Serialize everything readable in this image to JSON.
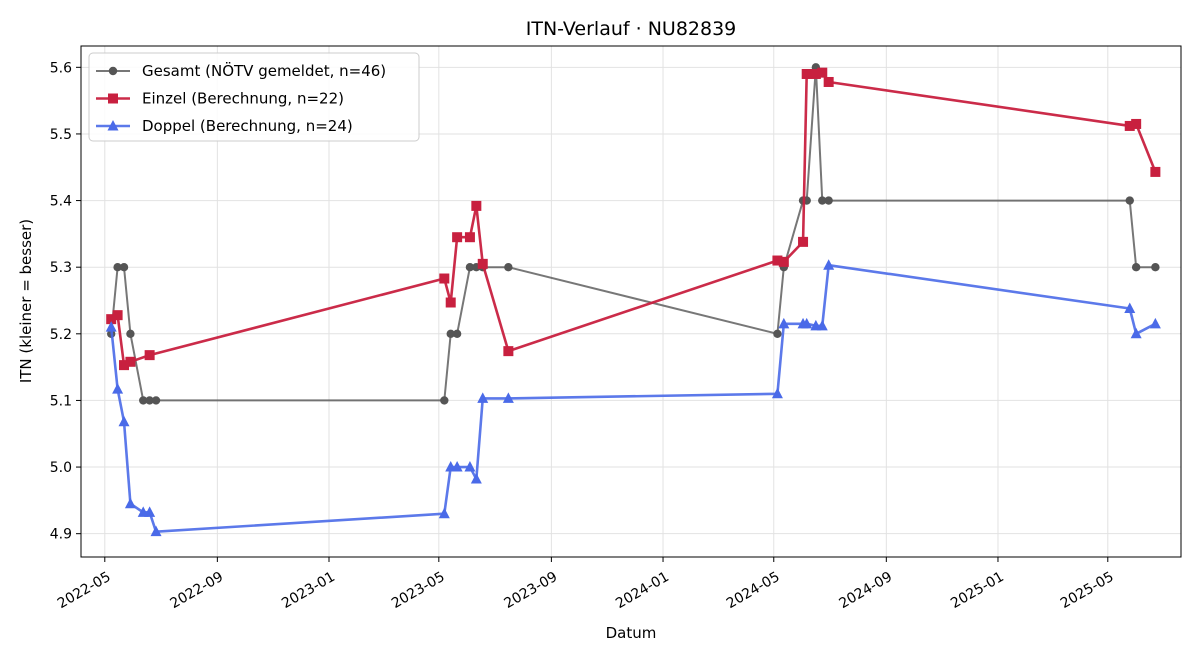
{
  "chart_data": {
    "type": "line",
    "title": "ITN-Verlauf · NU82839",
    "xlabel": "Datum",
    "ylabel": "ITN  (kleiner = besser)",
    "x_axis": "date",
    "xlim": [
      "2022-04-05",
      "2025-07-20"
    ],
    "ylim": [
      4.865,
      5.632
    ],
    "grid": true,
    "legend_position": "top-left",
    "x_ticks": [
      "2022-05",
      "2022-09",
      "2023-01",
      "2023-05",
      "2023-09",
      "2024-01",
      "2024-05",
      "2024-09",
      "2025-01",
      "2025-05"
    ],
    "y_ticks": [
      "4.9",
      "5.0",
      "5.1",
      "5.2",
      "5.3",
      "5.4",
      "5.5",
      "5.6"
    ],
    "series": [
      {
        "name": "Gesamt (NÖTV gemeldet, n=46)",
        "color": "#555555",
        "marker": "circle",
        "points": [
          [
            "2022-05-08",
            5.2
          ],
          [
            "2022-05-15",
            5.3
          ],
          [
            "2022-05-22",
            5.3
          ],
          [
            "2022-05-29",
            5.2
          ],
          [
            "2022-06-12",
            5.1
          ],
          [
            "2022-06-19",
            5.1
          ],
          [
            "2022-06-26",
            5.1
          ],
          [
            "2023-05-07",
            5.1
          ],
          [
            "2023-05-14",
            5.2
          ],
          [
            "2023-05-21",
            5.2
          ],
          [
            "2023-06-04",
            5.3
          ],
          [
            "2023-06-11",
            5.3
          ],
          [
            "2023-06-18",
            5.3
          ],
          [
            "2023-07-16",
            5.3
          ],
          [
            "2024-05-05",
            5.2
          ],
          [
            "2024-05-12",
            5.3
          ],
          [
            "2024-06-02",
            5.4
          ],
          [
            "2024-06-06",
            5.4
          ],
          [
            "2024-06-16",
            5.6
          ],
          [
            "2024-06-23",
            5.4
          ],
          [
            "2024-06-30",
            5.4
          ],
          [
            "2025-05-25",
            5.4
          ],
          [
            "2025-06-01",
            5.3
          ],
          [
            "2025-06-22",
            5.3
          ]
        ]
      },
      {
        "name": "Einzel (Berechnung, n=22)",
        "color": "#c8203f",
        "marker": "square",
        "points": [
          [
            "2022-05-08",
            5.222
          ],
          [
            "2022-05-15",
            5.228
          ],
          [
            "2022-05-22",
            5.153
          ],
          [
            "2022-05-29",
            5.158
          ],
          [
            "2022-06-19",
            5.168
          ],
          [
            "2023-05-07",
            5.283
          ],
          [
            "2023-05-14",
            5.247
          ],
          [
            "2023-05-21",
            5.345
          ],
          [
            "2023-06-04",
            5.345
          ],
          [
            "2023-06-11",
            5.392
          ],
          [
            "2023-06-18",
            5.305
          ],
          [
            "2023-07-16",
            5.174
          ],
          [
            "2024-05-05",
            5.31
          ],
          [
            "2024-05-12",
            5.308
          ],
          [
            "2024-06-02",
            5.338
          ],
          [
            "2024-06-06",
            5.59
          ],
          [
            "2024-06-16",
            5.59
          ],
          [
            "2024-06-23",
            5.592
          ],
          [
            "2024-06-30",
            5.578
          ],
          [
            "2025-05-25",
            5.512
          ],
          [
            "2025-06-01",
            5.515
          ],
          [
            "2025-06-22",
            5.443
          ]
        ]
      },
      {
        "name": "Doppel (Berechnung, n=24)",
        "color": "#4a6ae8",
        "marker": "triangle",
        "points": [
          [
            "2022-05-08",
            5.21
          ],
          [
            "2022-05-15",
            5.117
          ],
          [
            "2022-05-22",
            5.068
          ],
          [
            "2022-05-29",
            4.945
          ],
          [
            "2022-06-12",
            4.932
          ],
          [
            "2022-06-19",
            4.932
          ],
          [
            "2022-06-26",
            4.903
          ],
          [
            "2023-05-07",
            4.93
          ],
          [
            "2023-05-14",
            5.0
          ],
          [
            "2023-05-21",
            5.0
          ],
          [
            "2023-06-04",
            5.0
          ],
          [
            "2023-06-11",
            4.982
          ],
          [
            "2023-06-18",
            5.103
          ],
          [
            "2023-07-16",
            5.103
          ],
          [
            "2024-05-05",
            5.11
          ],
          [
            "2024-05-12",
            5.215
          ],
          [
            "2024-06-02",
            5.215
          ],
          [
            "2024-06-06",
            5.215
          ],
          [
            "2024-06-16",
            5.212
          ],
          [
            "2024-06-23",
            5.212
          ],
          [
            "2024-06-30",
            5.303
          ],
          [
            "2025-05-25",
            5.238
          ],
          [
            "2025-06-01",
            5.2
          ],
          [
            "2025-06-22",
            5.215
          ]
        ]
      }
    ]
  }
}
